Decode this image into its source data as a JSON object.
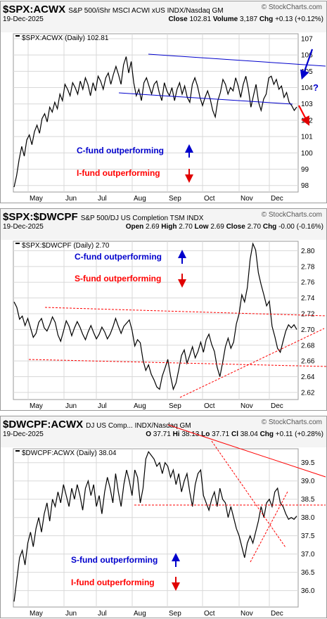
{
  "colors": {
    "price": "#000000",
    "grid": "#d8d8d8",
    "blue_trend": "#0000cc",
    "red_trend": "#ff0000",
    "blue_text": "#0000cc",
    "red_text": "#ff0000",
    "blue_arrow": "#0000cc",
    "red_arrow": "#e00000"
  },
  "panels": [
    {
      "symbol": "$SPX:ACWX",
      "description": "S&P 500/iShr MSCI ACWI xUS INDX/Nasdaq GM",
      "logo": "© StockCharts.com",
      "date": "19-Dec-2025",
      "stats": [
        {
          "k": "Close",
          "v": "102.81"
        },
        {
          "k": "Volume",
          "v": "3,187"
        },
        {
          "k": "Chg",
          "v": "+0.13 (+0.12%)"
        }
      ],
      "legend": "$SPX:ACWX (Daily) 102.81",
      "note_top": "C-fund outperforming",
      "note_bottom": "I-fund outperforming",
      "question": "?"
    },
    {
      "symbol": "$SPX:$DWCPF",
      "description": "S&P 500/DJ US Completion TSM INDX",
      "logo": "© StockCharts.com",
      "date": "19-Dec-2025",
      "stats": [
        {
          "k": "Open",
          "v": "2.69"
        },
        {
          "k": "High",
          "v": "2.70"
        },
        {
          "k": "Low",
          "v": "2.69"
        },
        {
          "k": "Close",
          "v": "2.70"
        },
        {
          "k": "Chg",
          "v": "-0.00 (-0.16%)"
        }
      ],
      "legend": "$SPX:$DWCPF (Daily) 2.70",
      "note_top": "C-fund outperforming",
      "note_bottom": "S-fund outperforming"
    },
    {
      "symbol": "$DWCPF:ACWX",
      "description": "DJ US Comp... INDX/Nasdaq GM",
      "logo": "© StockCharts.com",
      "date": "19-Dec-2025",
      "stats": [
        {
          "k": "O",
          "v": "37.71"
        },
        {
          "k": "Hi",
          "v": "38.13"
        },
        {
          "k": "Lo",
          "v": "37.71"
        },
        {
          "k": "Cl",
          "v": "38.04"
        },
        {
          "k": "Chg",
          "v": "+0.11 (+0.28%)"
        }
      ],
      "legend": "$DWCPF:ACWX (Daily) 38.04",
      "note_top": "S-fund outperforming",
      "note_bottom": "I-fund outperforming"
    }
  ],
  "chart_data": [
    {
      "type": "line",
      "title": "$SPX:ACWX",
      "x_ticks": [
        "May",
        "Jun",
        "Jul",
        "Aug",
        "Sep",
        "Oct",
        "Nov",
        "Dec"
      ],
      "y_ticks": [
        "107",
        "106",
        "105",
        "104",
        "103",
        "102",
        "101",
        "100",
        "99",
        "98"
      ],
      "ylim": [
        97.6,
        107.3
      ],
      "series": [
        {
          "name": "$SPX:ACWX (Daily) 102.81",
          "y": [
            97.9,
            98.6,
            99.6,
            100.4,
            99.8,
            100.8,
            101.1,
            100.5,
            101.3,
            101.7,
            101.2,
            102.1,
            102.4,
            101.9,
            102.8,
            102.5,
            103.1,
            102.7,
            103.6,
            103.2,
            104.2,
            103.9,
            103.5,
            104.3,
            104.0,
            103.6,
            104.4,
            103.9,
            104.6,
            104.2,
            103.5,
            104.3,
            103.8,
            104.7,
            104.4,
            103.9,
            104.6,
            104.9,
            104.2,
            104.8,
            105.3,
            104.8,
            104.2,
            105.4,
            105.9,
            104.9,
            105.6,
            104.3,
            103.5,
            103.9,
            103.2,
            104.3,
            104.6,
            104.1,
            103.6,
            104.2,
            104.4,
            103.7,
            103.2,
            104.3,
            103.8,
            103.5,
            104.0,
            103.2,
            103.9,
            104.3,
            103.6,
            104.1,
            103.4,
            103.1,
            104.2,
            104.6,
            104.1,
            103.4,
            102.9,
            103.4,
            103.8,
            103.3,
            102.6,
            102.2,
            103.2,
            103.7,
            104.5,
            104.2,
            103.6,
            104.0,
            103.8,
            104.6,
            104.1,
            103.4,
            104.2,
            104.7,
            103.9,
            102.8,
            103.5,
            104.2,
            103.1,
            102.6,
            103.3,
            103.6,
            104.6,
            104.7,
            104.2,
            104.5,
            103.9,
            104.1,
            103.4,
            103.7,
            103.1,
            102.9,
            102.6,
            102.81
          ]
        }
      ],
      "annotations": [
        "C-fund outperforming",
        "I-fund outperforming",
        "?"
      ]
    },
    {
      "type": "line",
      "title": "$SPX:$DWCPF",
      "x_ticks": [
        "May",
        "Jun",
        "Jul",
        "Aug",
        "Sep",
        "Oct",
        "Nov",
        "Dec"
      ],
      "y_ticks": [
        "2.80",
        "2.78",
        "2.76",
        "2.74",
        "2.72",
        "2.70",
        "2.68",
        "2.66",
        "2.64",
        "2.62"
      ],
      "ylim": [
        2.611,
        2.812
      ],
      "series": [
        {
          "name": "$SPX:$DWCPF (Daily) 2.70",
          "y": [
            2.735,
            2.728,
            2.713,
            2.717,
            2.705,
            2.714,
            2.702,
            2.69,
            2.695,
            2.709,
            2.714,
            2.702,
            2.698,
            2.706,
            2.716,
            2.709,
            2.693,
            2.685,
            2.698,
            2.711,
            2.704,
            2.692,
            2.702,
            2.71,
            2.703,
            2.694,
            2.687,
            2.697,
            2.705,
            2.696,
            2.688,
            2.694,
            2.703,
            2.697,
            2.688,
            2.694,
            2.703,
            2.714,
            2.704,
            2.695,
            2.704,
            2.708,
            2.712,
            2.699,
            2.679,
            2.687,
            2.683,
            2.661,
            2.648,
            2.655,
            2.643,
            2.636,
            2.627,
            2.624,
            2.641,
            2.651,
            2.662,
            2.641,
            2.624,
            2.632,
            2.649,
            2.667,
            2.674,
            2.657,
            2.667,
            2.678,
            2.664,
            2.672,
            2.684,
            2.671,
            2.687,
            2.694,
            2.681,
            2.672,
            2.652,
            2.64,
            2.658,
            2.678,
            2.689,
            2.676,
            2.684,
            2.707,
            2.72,
            2.744,
            2.735,
            2.753,
            2.789,
            2.809,
            2.801,
            2.772,
            2.757,
            2.744,
            2.73,
            2.736,
            2.704,
            2.691,
            2.676,
            2.671,
            2.685,
            2.698,
            2.706,
            2.702,
            2.706,
            2.7
          ]
        }
      ],
      "annotations": [
        "C-fund outperforming",
        "S-fund outperforming"
      ]
    },
    {
      "type": "line",
      "title": "$DWCPF:ACWX",
      "x_ticks": [
        "May",
        "Jun",
        "Jul",
        "Aug",
        "Sep",
        "Oct",
        "Nov",
        "Dec"
      ],
      "y_ticks": [
        "39.5",
        "39.0",
        "38.5",
        "38.0",
        "37.5",
        "37.0",
        "36.5",
        "36.0"
      ],
      "ylim": [
        35.55,
        39.88
      ],
      "series": [
        {
          "name": "$DWCPF:ACWX (Daily) 38.04",
          "y": [
            35.7,
            36.3,
            36.9,
            37.1,
            36.7,
            37.3,
            37.6,
            37.2,
            37.7,
            38.0,
            37.6,
            38.1,
            38.4,
            37.9,
            38.5,
            38.3,
            38.7,
            38.4,
            38.9,
            38.6,
            38.3,
            38.8,
            38.5,
            38.9,
            38.6,
            38.2,
            38.8,
            39.0,
            38.6,
            38.9,
            38.3,
            38.6,
            38.1,
            38.7,
            39.1,
            38.8,
            38.4,
            39.2,
            38.7,
            38.3,
            38.9,
            39.3,
            39.0,
            38.6,
            39.3,
            39.1,
            38.4,
            38.8,
            39.6,
            39.8,
            39.7,
            39.6,
            39.4,
            39.5,
            39.2,
            39.5,
            39.4,
            39.1,
            39.3,
            38.9,
            39.2,
            38.7,
            39.0,
            39.2,
            38.7,
            38.3,
            38.9,
            39.2,
            39.3,
            38.6,
            38.4,
            38.2,
            38.5,
            38.7,
            38.3,
            38.8,
            38.5,
            38.4,
            38.0,
            38.3,
            38.0,
            37.7,
            37.5,
            37.2,
            36.9,
            37.3,
            37.5,
            37.3,
            37.6,
            37.9,
            38.3,
            38.0,
            38.4,
            38.5,
            38.3,
            38.7,
            38.8,
            38.4,
            38.3,
            38.1,
            37.95,
            38.0,
            37.95,
            38.04
          ]
        }
      ],
      "annotations": [
        "S-fund outperforming",
        "I-fund outperforming"
      ]
    }
  ]
}
